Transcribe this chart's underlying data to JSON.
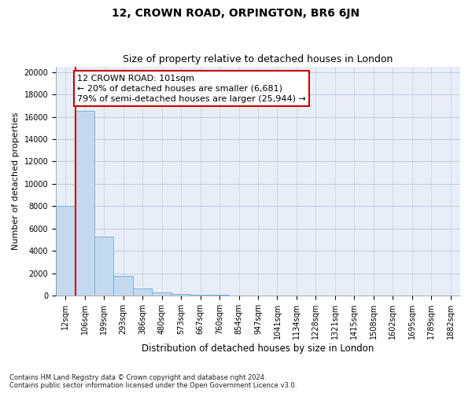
{
  "title1": "12, CROWN ROAD, ORPINGTON, BR6 6JN",
  "title2": "Size of property relative to detached houses in London",
  "xlabel": "Distribution of detached houses by size in London",
  "ylabel": "Number of detached properties",
  "annotation_line1": "12 CROWN ROAD: 101sqm",
  "annotation_line2": "← 20% of detached houses are smaller (6,681)",
  "annotation_line3": "79% of semi-detached houses are larger (25,944) →",
  "footnote1": "Contains HM Land Registry data © Crown copyright and database right 2024.",
  "footnote2": "Contains public sector information licensed under the Open Government Licence v3.0.",
  "bar_color": "#c5d9ee",
  "bar_edge_color": "#6aaed6",
  "vline_color": "#cc0000",
  "annotation_box_color": "#cc0000",
  "background_color": "#e8eef8",
  "grid_color": "#b8c8da",
  "categories": [
    "12sqm",
    "106sqm",
    "199sqm",
    "293sqm",
    "386sqm",
    "480sqm",
    "573sqm",
    "667sqm",
    "760sqm",
    "854sqm",
    "947sqm",
    "1041sqm",
    "1134sqm",
    "1228sqm",
    "1321sqm",
    "1415sqm",
    "1508sqm",
    "1602sqm",
    "1695sqm",
    "1789sqm",
    "1882sqm"
  ],
  "values": [
    8050,
    16500,
    5280,
    1750,
    620,
    310,
    155,
    95,
    68,
    48,
    32,
    20,
    14,
    10,
    8,
    5,
    4,
    3,
    2,
    2,
    1
  ],
  "ylim": [
    0,
    20500
  ],
  "yticks": [
    0,
    2000,
    4000,
    6000,
    8000,
    10000,
    12000,
    14000,
    16000,
    18000,
    20000
  ],
  "vline_x_index": 1,
  "title1_fontsize": 10,
  "title2_fontsize": 9,
  "annotation_fontsize": 8,
  "tick_fontsize": 7,
  "ylabel_fontsize": 8,
  "xlabel_fontsize": 8.5
}
